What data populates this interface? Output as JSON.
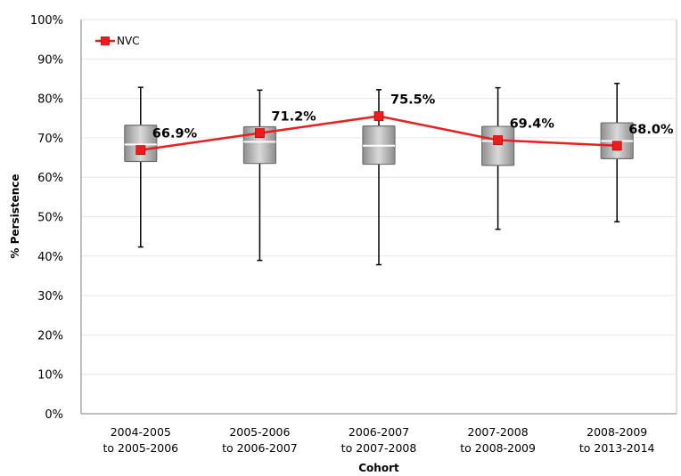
{
  "chart_data": {
    "type": "box",
    "title": "",
    "xlabel": "Cohort",
    "ylabel": "% Persistence",
    "ylim": [
      0,
      100
    ],
    "yticks": [
      "0%",
      "10%",
      "20%",
      "30%",
      "40%",
      "50%",
      "60%",
      "70%",
      "80%",
      "90%",
      "100%"
    ],
    "categories": [
      [
        "2004-2005",
        "to 2005-2006"
      ],
      [
        "2005-2006",
        "to 2006-2007"
      ],
      [
        "2006-2007",
        "to 2007-2008"
      ],
      [
        "2007-2008",
        "to 2008-2009"
      ],
      [
        "2008-2009",
        "to 2013-2014"
      ]
    ],
    "boxes": [
      {
        "min": 42.3,
        "q1": 64.0,
        "median": 68.3,
        "q3": 73.2,
        "max": 82.8
      },
      {
        "min": 38.9,
        "q1": 63.5,
        "median": 69.0,
        "q3": 72.8,
        "max": 82.1
      },
      {
        "min": 37.8,
        "q1": 63.3,
        "median": 68.0,
        "q3": 73.0,
        "max": 82.2
      },
      {
        "min": 46.8,
        "q1": 63.0,
        "median": 69.2,
        "q3": 72.9,
        "max": 82.7
      },
      {
        "min": 48.7,
        "q1": 64.7,
        "median": 69.2,
        "q3": 73.8,
        "max": 83.8
      }
    ],
    "series": [
      {
        "name": "NVC",
        "color": "#ee1c1c",
        "values": [
          66.9,
          71.2,
          75.5,
          69.4,
          68.0
        ],
        "labels": [
          "66.9%",
          "71.2%",
          "75.5%",
          "69.4%",
          "68.0%"
        ]
      }
    ],
    "legend": "top-left",
    "grid": true
  }
}
